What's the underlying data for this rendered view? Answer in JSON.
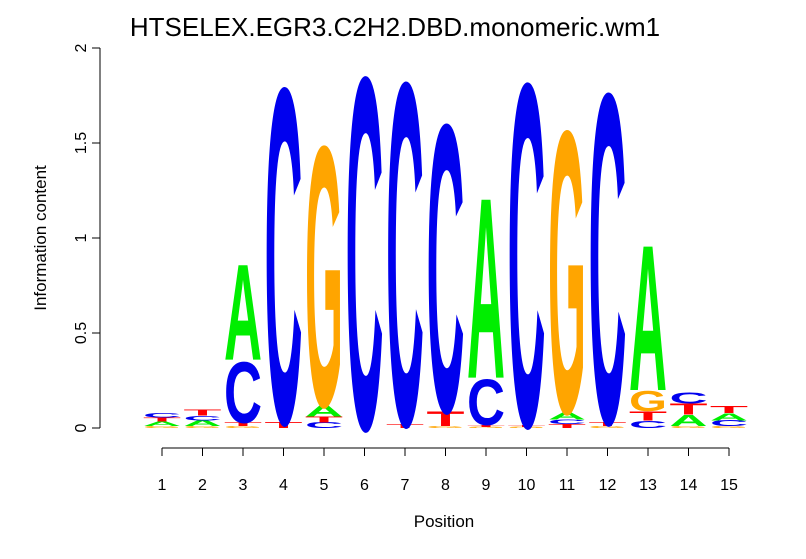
{
  "chart_data": {
    "type": "sequence-logo",
    "title": "HTSELEX.EGR3.C2H2.DBD.monomeric.wm1",
    "xlabel": "Position",
    "ylabel": "Information content",
    "ylim": [
      0,
      2
    ],
    "yticks": [
      "0",
      "0.5",
      "1",
      "1.5",
      "2"
    ],
    "positions": [
      "1",
      "2",
      "3",
      "4",
      "5",
      "6",
      "7",
      "8",
      "9",
      "10",
      "11",
      "12",
      "13",
      "14",
      "15"
    ],
    "colors": {
      "A": "#00ee00",
      "C": "#0000ee",
      "G": "#ffa500",
      "T": "#ff0000"
    },
    "stacks": [
      [
        {
          "letter": "G",
          "height": 0.01
        },
        {
          "letter": "A",
          "height": 0.025
        },
        {
          "letter": "T",
          "height": 0.02
        },
        {
          "letter": "C",
          "height": 0.025
        }
      ],
      [
        {
          "letter": "G",
          "height": 0.01
        },
        {
          "letter": "A",
          "height": 0.03
        },
        {
          "letter": "C",
          "height": 0.025
        },
        {
          "letter": "T",
          "height": 0.03
        }
      ],
      [
        {
          "letter": "G",
          "height": 0.01
        },
        {
          "letter": "T",
          "height": 0.02
        },
        {
          "letter": "C",
          "height": 0.33
        },
        {
          "letter": "A",
          "height": 0.52
        }
      ],
      [
        {
          "letter": "T",
          "height": 0.03
        },
        {
          "letter": "C",
          "height": 1.82
        }
      ],
      [
        {
          "letter": "C",
          "height": 0.03
        },
        {
          "letter": "T",
          "height": 0.03
        },
        {
          "letter": "A",
          "height": 0.06
        },
        {
          "letter": "G",
          "height": 1.41
        }
      ],
      [
        {
          "letter": "C",
          "height": 1.91
        }
      ],
      [
        {
          "letter": "T",
          "height": 0.02
        },
        {
          "letter": "C",
          "height": 1.86
        }
      ],
      [
        {
          "letter": "G",
          "height": 0.01
        },
        {
          "letter": "T",
          "height": 0.08
        },
        {
          "letter": "C",
          "height": 1.56
        }
      ],
      [
        {
          "letter": "G",
          "height": 0.005
        },
        {
          "letter": "T",
          "height": 0.01
        },
        {
          "letter": "C",
          "height": 0.25
        },
        {
          "letter": "A",
          "height": 0.98
        }
      ],
      [
        {
          "letter": "G",
          "height": 0.005
        },
        {
          "letter": "T",
          "height": 0.01
        },
        {
          "letter": "C",
          "height": 1.86
        }
      ],
      [
        {
          "letter": "T",
          "height": 0.02
        },
        {
          "letter": "C",
          "height": 0.025
        },
        {
          "letter": "A",
          "height": 0.04
        },
        {
          "letter": "G",
          "height": 1.53
        }
      ],
      [
        {
          "letter": "G",
          "height": 0.01
        },
        {
          "letter": "T",
          "height": 0.02
        },
        {
          "letter": "C",
          "height": 1.79
        }
      ],
      [
        {
          "letter": "C",
          "height": 0.04
        },
        {
          "letter": "T",
          "height": 0.05
        },
        {
          "letter": "G",
          "height": 0.11
        },
        {
          "letter": "A",
          "height": 0.79
        }
      ],
      [
        {
          "letter": "G",
          "height": 0.01
        },
        {
          "letter": "A",
          "height": 0.06
        },
        {
          "letter": "T",
          "height": 0.06
        },
        {
          "letter": "C",
          "height": 0.06
        }
      ],
      [
        {
          "letter": "G",
          "height": 0.01
        },
        {
          "letter": "C",
          "height": 0.03
        },
        {
          "letter": "A",
          "height": 0.04
        },
        {
          "letter": "T",
          "height": 0.04
        }
      ]
    ]
  }
}
